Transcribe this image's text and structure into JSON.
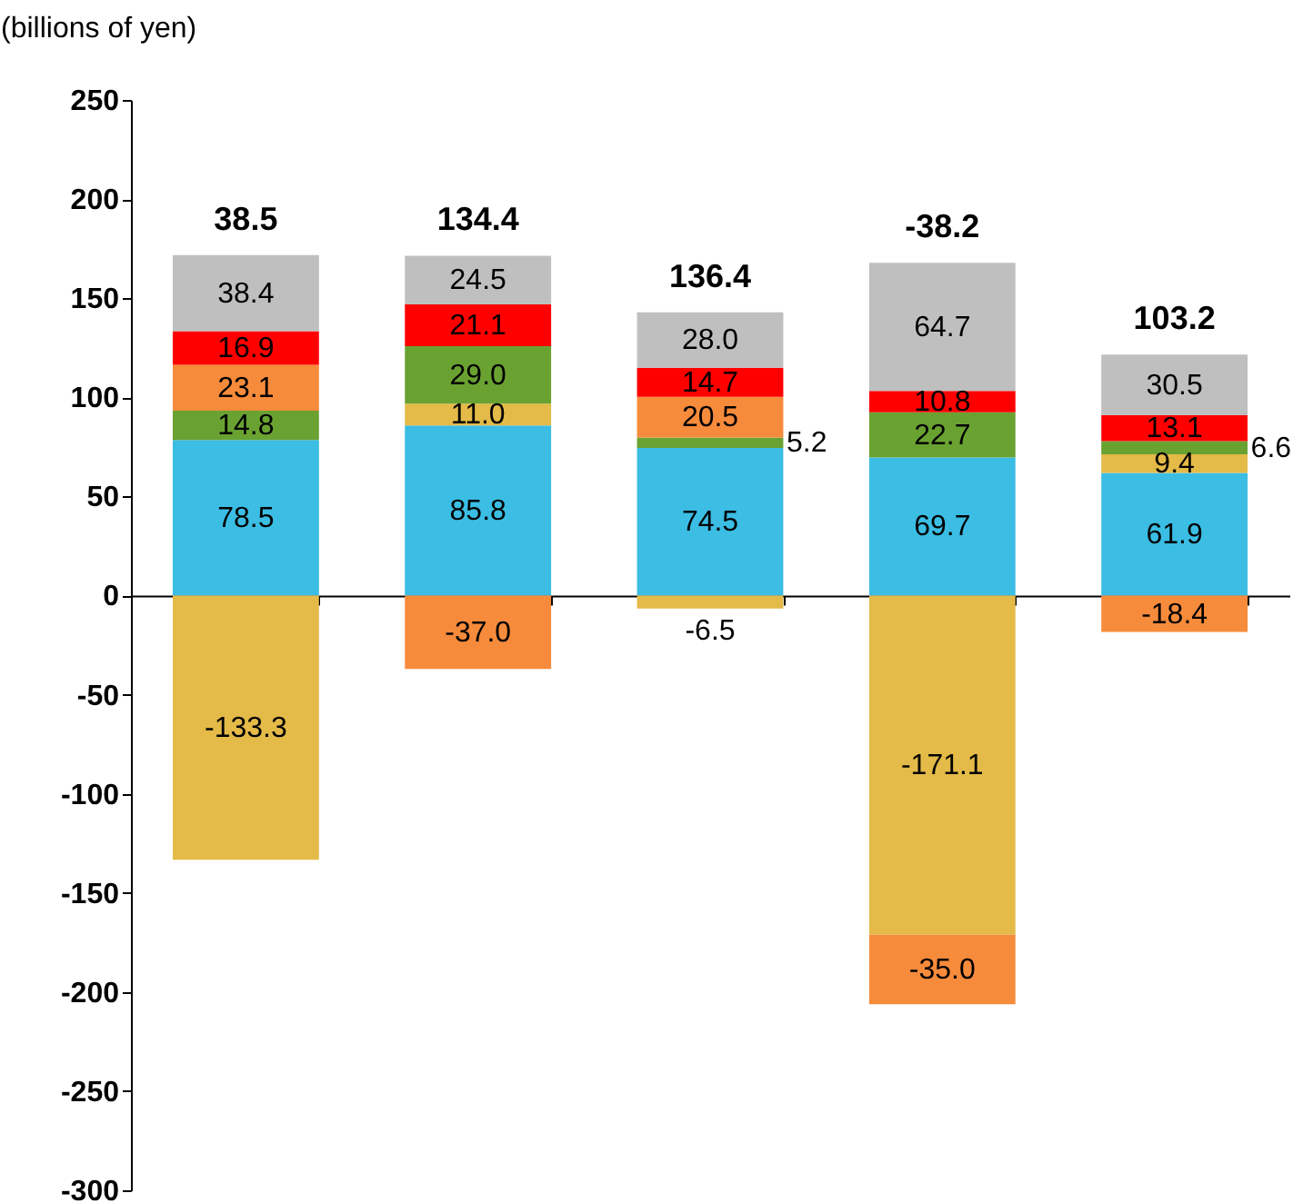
{
  "chart_data": {
    "type": "bar",
    "stacked": true,
    "ylabel": "(billions of yen)",
    "categories": [
      null,
      null,
      null,
      null,
      null
    ],
    "series": [
      {
        "color": "#3bbde4",
        "values": [
          78.5,
          85.8,
          74.5,
          69.7,
          61.9
        ],
        "value_labels": [
          "78.5",
          "85.8",
          "74.5",
          "69.7",
          "61.9"
        ]
      },
      {
        "color": "#e4ba48",
        "values": [
          -133.3,
          11.0,
          -6.5,
          -171.1,
          9.4
        ],
        "value_labels": [
          "-133.3",
          "11.0",
          "-6.5",
          "-171.1",
          "9.4"
        ]
      },
      {
        "color": "#6aa232",
        "values": [
          14.8,
          29.0,
          5.2,
          22.7,
          6.6
        ],
        "value_labels": [
          "14.8",
          "29.0",
          "5.2",
          "22.7",
          "6.6"
        ]
      },
      {
        "color": "#f78b3c",
        "values": [
          23.1,
          -37.0,
          20.5,
          -35.0,
          -18.4
        ],
        "value_labels": [
          "23.1",
          "-37.0",
          "20.5",
          "-35.0",
          "-18.4"
        ]
      },
      {
        "color": "#ff0000",
        "values": [
          16.9,
          21.1,
          14.7,
          10.8,
          13.1
        ],
        "value_labels": [
          "16.9",
          "21.1",
          "14.7",
          "10.8",
          "13.1"
        ]
      },
      {
        "color": "#bfbfbf",
        "values": [
          38.4,
          24.5,
          28.0,
          64.7,
          30.5
        ],
        "value_labels": [
          "38.4",
          "24.5",
          "28.0",
          "64.7",
          "30.5"
        ]
      }
    ],
    "totals": [
      "38.5",
      "134.4",
      "136.4",
      "-38.2",
      "103.2"
    ],
    "ylim": [
      -300,
      250
    ],
    "yticks": [
      -300,
      -250,
      -200,
      -150,
      -100,
      -50,
      0,
      50,
      100,
      150,
      200,
      250
    ]
  }
}
